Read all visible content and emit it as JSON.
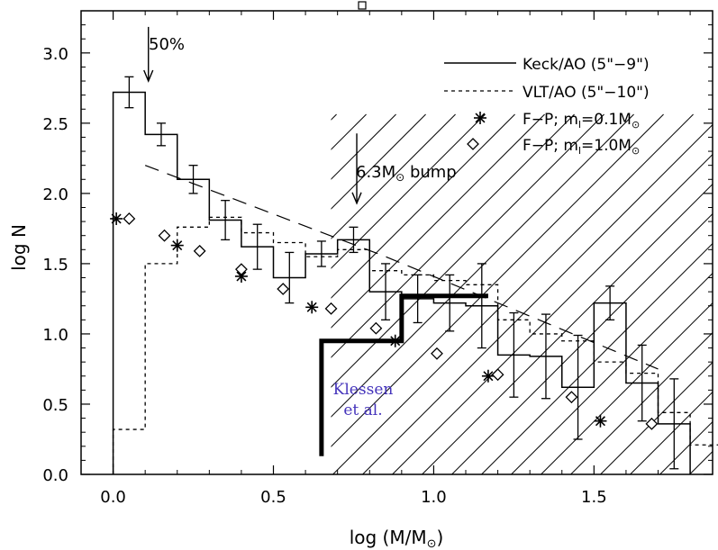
{
  "chart_data": {
    "type": "histogram",
    "title": "",
    "xlabel": "log (M/M⊙)",
    "ylabel": "log N",
    "xlim": [
      -0.1,
      1.87
    ],
    "ylim": [
      0.0,
      3.3
    ],
    "xticks": [
      0.0,
      0.5,
      1.0,
      1.5
    ],
    "xtick_labels": [
      "0.0",
      "0.5",
      "1.0",
      "1.5"
    ],
    "yticks": [
      0.0,
      0.5,
      1.0,
      1.5,
      2.0,
      2.5,
      3.0
    ],
    "ytick_labels": [
      "0.0",
      "0.5",
      "1.0",
      "1.5",
      "2.0",
      "2.5",
      "3.0"
    ],
    "series": [
      {
        "name": "Keck/AO (5\"–9\")",
        "style": "solid-histogram",
        "bins": [
          {
            "x0": 0.0,
            "x1": 0.1,
            "y": 2.72,
            "err": 0.11
          },
          {
            "x0": 0.1,
            "x1": 0.2,
            "y": 2.42,
            "err": 0.08
          },
          {
            "x0": 0.2,
            "x1": 0.3,
            "y": 2.1,
            "err": 0.1
          },
          {
            "x0": 0.3,
            "x1": 0.4,
            "y": 1.81,
            "err": 0.14
          },
          {
            "x0": 0.4,
            "x1": 0.5,
            "y": 1.62,
            "err": 0.16
          },
          {
            "x0": 0.5,
            "x1": 0.6,
            "y": 1.4,
            "err": 0.18
          },
          {
            "x0": 0.6,
            "x1": 0.7,
            "y": 1.57,
            "err": 0.09
          },
          {
            "x0": 0.7,
            "x1": 0.8,
            "y": 1.67,
            "err": 0.09
          },
          {
            "x0": 0.8,
            "x1": 0.9,
            "y": 1.3,
            "err": 0.2
          },
          {
            "x0": 0.9,
            "x1": 1.0,
            "y": 1.25,
            "err": 0.17
          },
          {
            "x0": 1.0,
            "x1": 1.1,
            "y": 1.22,
            "err": 0.2
          },
          {
            "x0": 1.1,
            "x1": 1.2,
            "y": 1.2,
            "err": 0.3
          },
          {
            "x0": 1.2,
            "x1": 1.3,
            "y": 0.85,
            "err": 0.3
          },
          {
            "x0": 1.3,
            "x1": 1.4,
            "y": 0.84,
            "err": 0.3
          },
          {
            "x0": 1.4,
            "x1": 1.5,
            "y": 0.62,
            "err": 0.37
          },
          {
            "x0": 1.5,
            "x1": 1.6,
            "y": 1.22,
            "err": 0.12
          },
          {
            "x0": 1.6,
            "x1": 1.7,
            "y": 0.65,
            "err": 0.27
          },
          {
            "x0": 1.7,
            "x1": 1.8,
            "y": 0.36,
            "err": 0.32
          }
        ]
      },
      {
        "name": "VLT/AO (5\"–10\")",
        "style": "dotted-histogram",
        "bins": [
          {
            "x0": 0.0,
            "x1": 0.1,
            "y": 0.32
          },
          {
            "x0": 0.1,
            "x1": 0.2,
            "y": 1.5
          },
          {
            "x0": 0.2,
            "x1": 0.3,
            "y": 1.76
          },
          {
            "x0": 0.3,
            "x1": 0.4,
            "y": 1.83
          },
          {
            "x0": 0.4,
            "x1": 0.5,
            "y": 1.72
          },
          {
            "x0": 0.5,
            "x1": 0.6,
            "y": 1.65
          },
          {
            "x0": 0.6,
            "x1": 0.7,
            "y": 1.55
          },
          {
            "x0": 0.7,
            "x1": 0.8,
            "y": 1.6
          },
          {
            "x0": 0.8,
            "x1": 0.9,
            "y": 1.45
          },
          {
            "x0": 0.9,
            "x1": 1.0,
            "y": 1.42
          },
          {
            "x0": 1.0,
            "x1": 1.1,
            "y": 1.38
          },
          {
            "x0": 1.1,
            "x1": 1.2,
            "y": 1.35
          },
          {
            "x0": 1.2,
            "x1": 1.3,
            "y": 1.1
          },
          {
            "x0": 1.3,
            "x1": 1.4,
            "y": 1.0
          },
          {
            "x0": 1.4,
            "x1": 1.5,
            "y": 0.95
          },
          {
            "x0": 1.5,
            "x1": 1.6,
            "y": 0.8
          },
          {
            "x0": 1.6,
            "x1": 1.7,
            "y": 0.72
          },
          {
            "x0": 1.7,
            "x1": 1.8,
            "y": 0.44
          },
          {
            "x0": 1.8,
            "x1": 1.9,
            "y": 0.21
          }
        ]
      },
      {
        "name": "long-dash guide",
        "style": "long-dash-line",
        "points": [
          [
            0.1,
            2.2
          ],
          [
            0.85,
            1.55
          ],
          [
            1.7,
            0.75
          ]
        ]
      },
      {
        "name": "F−P; m_l=0.1M⊙",
        "style": "asterisk",
        "points": [
          [
            0.01,
            1.82
          ],
          [
            0.2,
            1.63
          ],
          [
            0.4,
            1.41
          ],
          [
            0.62,
            1.19
          ],
          [
            0.88,
            0.95
          ],
          [
            1.17,
            0.7
          ],
          [
            1.52,
            0.38
          ]
        ]
      },
      {
        "name": "F−P; m_l=1.0M⊙",
        "style": "diamond",
        "points": [
          [
            0.05,
            1.82
          ],
          [
            0.16,
            1.7
          ],
          [
            0.27,
            1.59
          ],
          [
            0.4,
            1.46
          ],
          [
            0.53,
            1.32
          ],
          [
            0.68,
            1.18
          ],
          [
            0.82,
            1.04
          ],
          [
            1.01,
            0.86
          ],
          [
            1.2,
            0.71
          ],
          [
            1.43,
            0.55
          ],
          [
            1.68,
            0.36
          ]
        ]
      },
      {
        "name": "Klessen et al.",
        "style": "thick-step",
        "points": [
          [
            0.65,
            0.13
          ],
          [
            0.65,
            0.95
          ],
          [
            0.9,
            0.95
          ],
          [
            0.9,
            1.27
          ],
          [
            1.17,
            1.27
          ]
        ]
      }
    ],
    "shaded_region": {
      "style": "diagonal-hatch",
      "x_range": [
        0.68,
        1.87
      ]
    },
    "legend": {
      "position": "top-right",
      "entries": [
        {
          "label": "Keck/AO (5\"–9\")",
          "marker": "solid-line"
        },
        {
          "label": "VLT/AO (5\"–10\")",
          "marker": "dashed-line"
        },
        {
          "label_main": "F−P;  m",
          "label_sub": "l",
          "label_rest": "=0.1M",
          "label_sup": "⊙",
          "marker": "asterisk"
        },
        {
          "label_main": "F−P;  m",
          "label_sub": "l",
          "label_rest": "=1.0M",
          "label_sup": "⊙",
          "marker": "diamond"
        }
      ]
    },
    "annotations": [
      {
        "text": "50%",
        "x": 0.11,
        "y": 3.07,
        "arrow_to": [
          0.11,
          2.8
        ]
      },
      {
        "text": "6.3M⊙ bump",
        "x": 0.76,
        "y": 2.35,
        "arrow_to": [
          0.76,
          1.93
        ]
      },
      {
        "text_line1": "Klessen",
        "text_line2": "et  al.",
        "x": 0.76,
        "y": 0.55,
        "color": "#4433bb"
      }
    ]
  },
  "labels": {
    "xlabel_main": "log (M/M",
    "xlabel_sun": "⊙",
    "xlabel_end": ")",
    "ylabel": "log N",
    "ann_50": "50%",
    "ann_bump_main": "6.3M",
    "ann_bump_sun": "⊙",
    "ann_bump_end": " bump",
    "klessen_1": "Klessen",
    "klessen_2": "et  al.",
    "legend_keck": "Keck/AO (5\"−9\")",
    "legend_vlt": "VLT/AO (5\"−10\")"
  }
}
